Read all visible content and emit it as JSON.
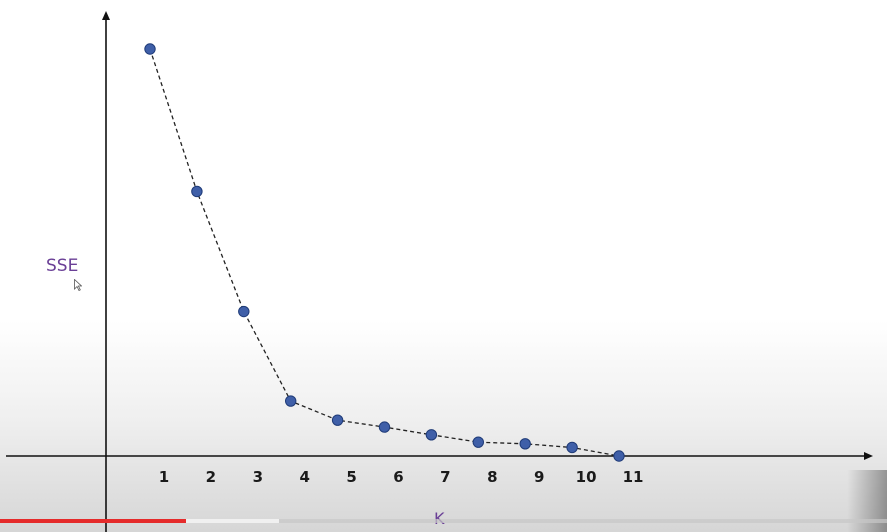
{
  "chart_data": {
    "type": "line",
    "xlabel": "K",
    "ylabel": "SSE",
    "x": [
      1,
      2,
      3,
      4,
      5,
      6,
      7,
      8,
      9,
      10,
      11
    ],
    "y": [
      100,
      65,
      35.5,
      13.5,
      8.8,
      7.1,
      5.2,
      3.4,
      3.0,
      2.1,
      0
    ],
    "xlim": [
      0,
      12
    ],
    "ylim": [
      0,
      100
    ],
    "line_style": "dashed",
    "colors": {
      "marker": "#3f5fa8",
      "marker_edge": "#1f3b78",
      "line": "#222222",
      "axis": "#111111"
    },
    "grid": false,
    "legend": "none"
  },
  "video": {
    "progress": 0.21,
    "colors": {
      "played": "#e52b2b",
      "buffered": "#f0f0f0"
    }
  }
}
